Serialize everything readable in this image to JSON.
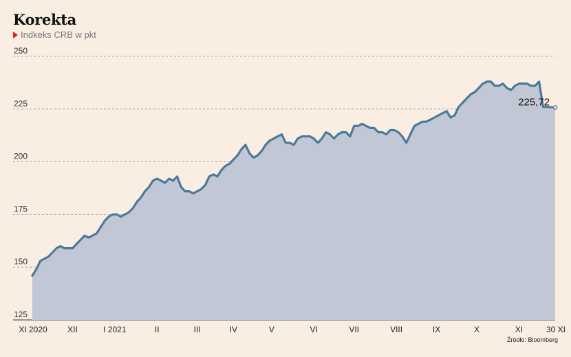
{
  "chart_data": {
    "type": "area",
    "title": "Korekta",
    "subtitle": "Indkeks CRB w pkt",
    "source": "Źródło: Bloomberg",
    "yticks": [
      125,
      150,
      175,
      200,
      225,
      250
    ],
    "ylim": [
      125,
      250
    ],
    "xlim": [
      0,
      260
    ],
    "xticks": [
      {
        "label": "XI 2020",
        "x": 0
      },
      {
        "label": "XII",
        "x": 20
      },
      {
        "label": "I 2021",
        "x": 41
      },
      {
        "label": "II",
        "x": 62
      },
      {
        "label": "III",
        "x": 82
      },
      {
        "label": "IV",
        "x": 100
      },
      {
        "label": "V",
        "x": 119
      },
      {
        "label": "VI",
        "x": 140
      },
      {
        "label": "VII",
        "x": 160
      },
      {
        "label": "VIII",
        "x": 181
      },
      {
        "label": "IX",
        "x": 201
      },
      {
        "label": "X",
        "x": 221
      },
      {
        "label": "XI",
        "x": 242
      },
      {
        "label": "30 XI",
        "x": 260
      }
    ],
    "last_value_label": "225,72",
    "grid": true,
    "colors": {
      "line": "#4b7a99",
      "area": "#c2c7d6",
      "grid": "#9a9a9a",
      "background": "#faeee3",
      "marker": "#e0231c"
    },
    "series": [
      {
        "x": [
          0,
          2,
          4,
          6,
          8,
          10,
          12,
          14,
          16,
          18,
          20,
          22,
          24,
          26,
          28,
          30,
          32,
          34,
          36,
          38,
          40,
          42,
          44,
          46,
          48,
          50,
          52,
          54,
          56,
          58,
          60,
          62,
          64,
          66,
          68,
          70,
          72,
          74,
          76,
          78,
          80,
          82,
          84,
          86,
          88,
          90,
          92,
          94,
          96,
          98,
          100,
          102,
          104,
          106,
          108,
          110,
          112,
          114,
          116,
          118,
          120,
          122,
          124,
          126,
          128,
          130,
          132,
          134,
          136,
          138,
          140,
          142,
          144,
          146,
          148,
          150,
          152,
          154,
          156,
          158,
          160,
          162,
          164,
          166,
          168,
          170,
          172,
          174,
          176,
          178,
          180,
          182,
          184,
          186,
          188,
          190,
          192,
          194,
          196,
          198,
          200,
          202,
          204,
          206,
          208,
          210,
          212,
          214,
          216,
          218,
          220,
          222,
          224,
          226,
          228,
          230,
          232,
          234,
          236,
          238,
          240,
          242,
          244,
          246,
          248,
          250,
          252,
          254,
          256,
          258,
          260
        ],
        "values": [
          146,
          149,
          153,
          154,
          155,
          157,
          159,
          160,
          159,
          159,
          159,
          161,
          163,
          165,
          164,
          165,
          166,
          169,
          172,
          174,
          175,
          175,
          174,
          175,
          176,
          178,
          181,
          183,
          186,
          188,
          191,
          192,
          191,
          190,
          192,
          191,
          193,
          188,
          186,
          186,
          185,
          186,
          187,
          189,
          193,
          194,
          193,
          196,
          198,
          199,
          201,
          203,
          206,
          208,
          204,
          202,
          203,
          205,
          208,
          210,
          211,
          212,
          213,
          209,
          209,
          208,
          211,
          212,
          212,
          212,
          211,
          209,
          211,
          214,
          213,
          211,
          213,
          214,
          214,
          212,
          217,
          217,
          218,
          217,
          216,
          216,
          214,
          214,
          213,
          215,
          215,
          214,
          212,
          209,
          213,
          217,
          218,
          219,
          219,
          220,
          221,
          222,
          223,
          224,
          221,
          222,
          226,
          228,
          230,
          232,
          233,
          235,
          237,
          238,
          238,
          236,
          236,
          237,
          235,
          234,
          236,
          237,
          237,
          237,
          236,
          236,
          238,
          226,
          226,
          225.8,
          225.72
        ]
      }
    ]
  }
}
